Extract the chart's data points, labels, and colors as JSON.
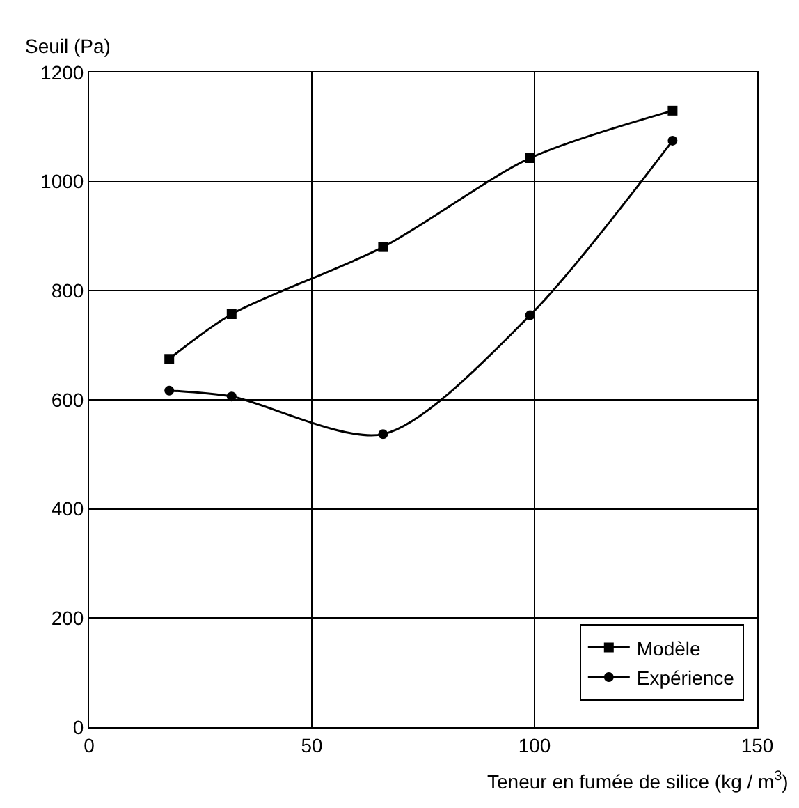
{
  "chart_data": {
    "type": "line",
    "xlabel": "Teneur en fumée de silice (kg / m$^{3}$)",
    "ylabel": "Seuil (Pa)",
    "xlim": [
      0,
      150
    ],
    "xticks": [
      0,
      50,
      100,
      150
    ],
    "ylim": [
      0,
      1200
    ],
    "yticks": [
      0,
      200,
      400,
      600,
      800,
      1000,
      1200
    ],
    "grid": true,
    "legend": "bottom right",
    "line_style": "solid",
    "series": [
      {
        "name": "Modèle",
        "color": "#000000",
        "marker": "square",
        "x": [
          18,
          32,
          66,
          99,
          131
        ],
        "values": [
          675,
          757,
          880,
          1043,
          1130
        ]
      },
      {
        "name": "Expérience",
        "color": "#000000",
        "marker": "circle",
        "x": [
          18,
          32,
          66,
          99,
          131
        ],
        "values": [
          617,
          606,
          537,
          755,
          1075
        ]
      }
    ]
  }
}
